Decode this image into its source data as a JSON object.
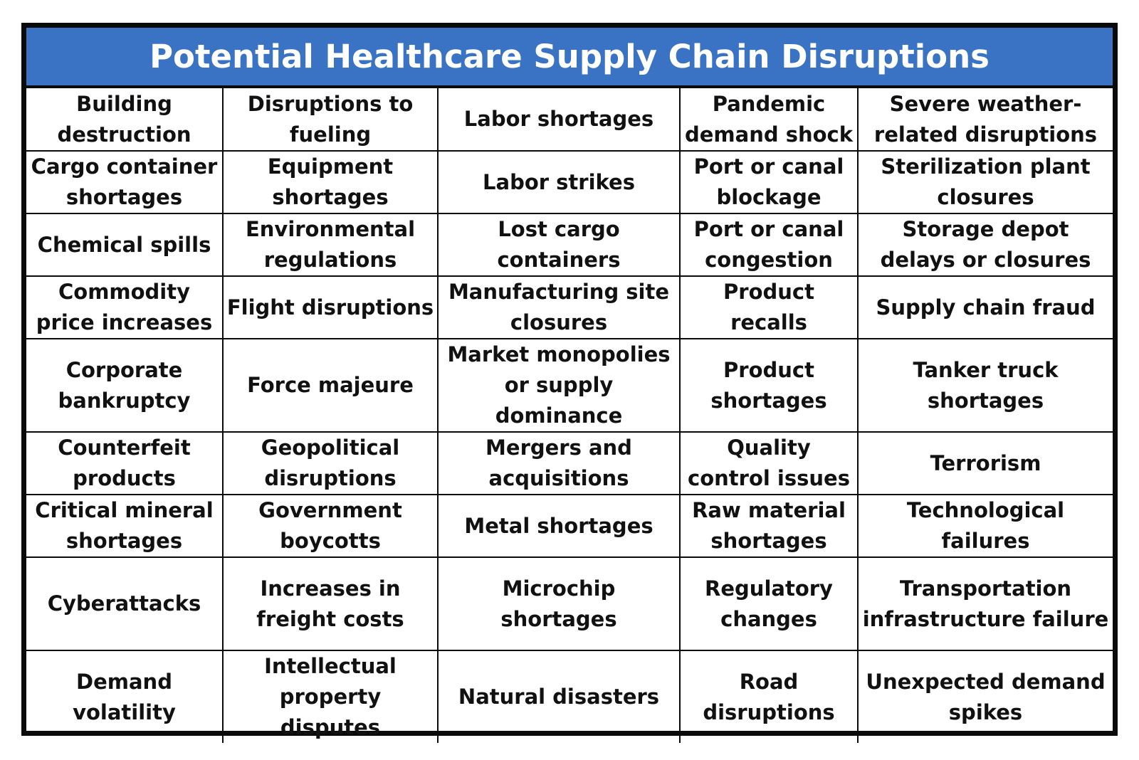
{
  "title": "Potential Healthcare Supply Chain Disruptions",
  "colors": {
    "title_background": "#3a72c4",
    "title_text": "#ffffff",
    "border": "#0a0a0a",
    "cell_text": "#111111"
  },
  "rows": [
    [
      "Building destruction",
      "Disruptions to fueling",
      "Labor shortages",
      "Pandemic demand shock",
      "Severe weather-related disruptions"
    ],
    [
      "Cargo container shortages",
      "Equipment shortages",
      "Labor strikes",
      "Port or canal blockage",
      "Sterilization plant closures"
    ],
    [
      "Chemical spills",
      "Environmental regulations",
      "Lost cargo containers",
      "Port or canal congestion",
      "Storage depot delays or closures"
    ],
    [
      "Commodity price increases",
      "Flight disruptions",
      "Manufacturing site closures",
      "Product recalls",
      "Supply chain fraud"
    ],
    [
      "Corporate bankruptcy",
      "Force majeure",
      "Market monopolies or supply dominance",
      "Product shortages",
      "Tanker truck shortages"
    ],
    [
      "Counterfeit products",
      "Geopolitical disruptions",
      "Mergers and acquisitions",
      "Quality control issues",
      "Terrorism"
    ],
    [
      "Critical mineral shortages",
      "Government boycotts",
      "Metal shortages",
      "Raw material shortages",
      "Technological failures"
    ],
    [
      "Cyberattacks",
      "Increases in freight costs",
      "Microchip shortages",
      "Regulatory changes",
      "Transportation infrastructure failure"
    ],
    [
      "Demand volatility",
      "Intellectual property disputes",
      "Natural disasters",
      "Road disruptions",
      "Unexpected demand spikes"
    ]
  ]
}
